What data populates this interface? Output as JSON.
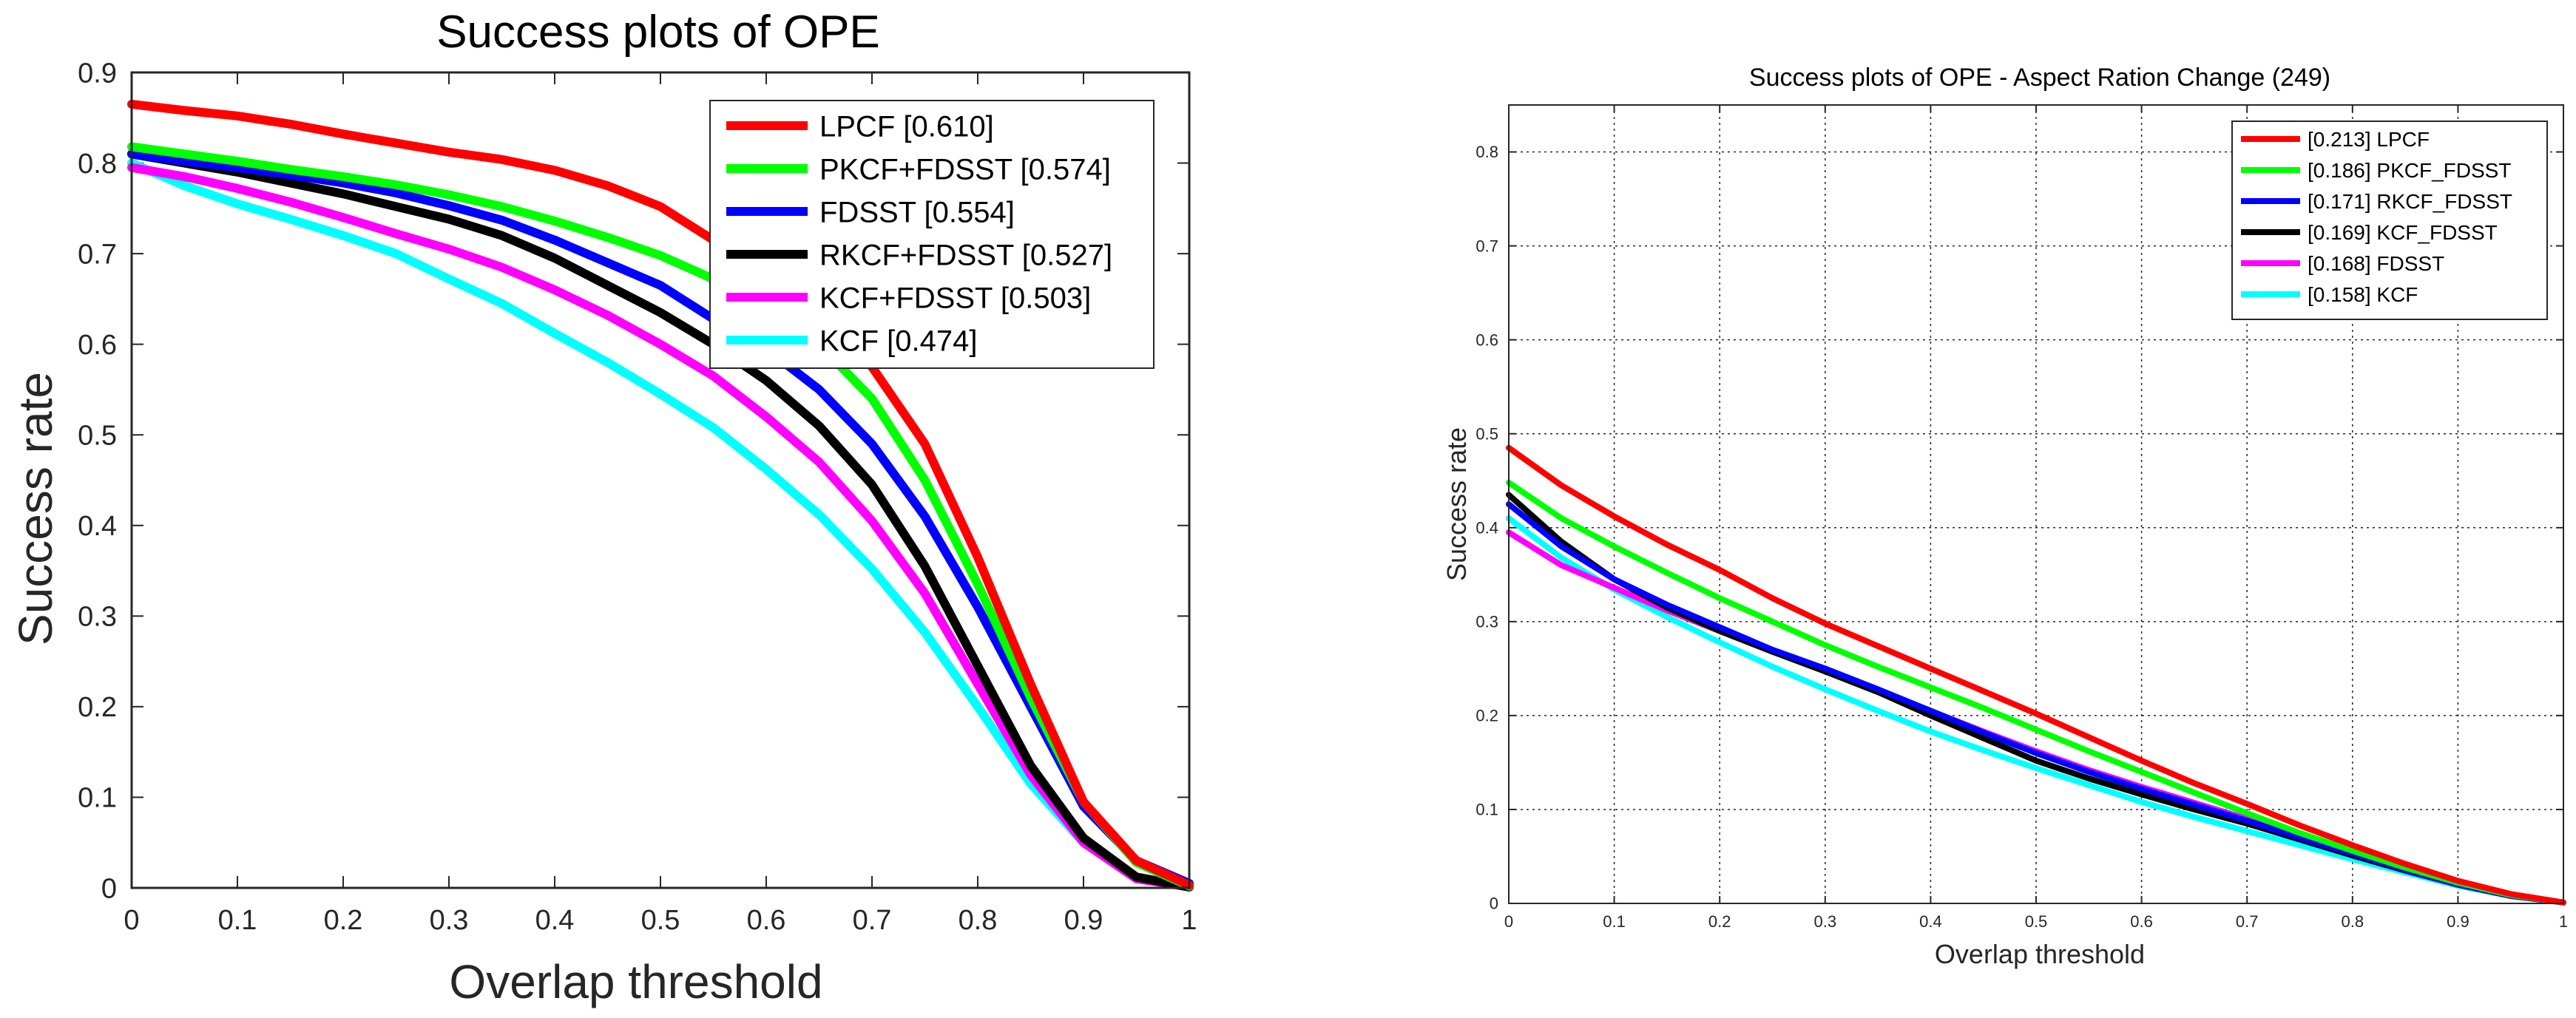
{
  "chart_data": [
    {
      "type": "line",
      "title": "Success plots of OPE",
      "xlabel": "Overlap threshold",
      "ylabel": "Success rate",
      "xlim": [
        0,
        1
      ],
      "ylim": [
        0,
        0.9
      ],
      "xticks": [
        "0",
        "0.1",
        "0.2",
        "0.3",
        "0.4",
        "0.5",
        "0.6",
        "0.7",
        "0.8",
        "0.9",
        "1"
      ],
      "yticks": [
        "0",
        "0.1",
        "0.2",
        "0.3",
        "0.4",
        "0.5",
        "0.6",
        "0.7",
        "0.8",
        "0.9"
      ],
      "grid": false,
      "legend_position": "top-right",
      "x": [
        0,
        0.05,
        0.1,
        0.15,
        0.2,
        0.25,
        0.3,
        0.35,
        0.4,
        0.45,
        0.5,
        0.55,
        0.6,
        0.65,
        0.7,
        0.75,
        0.8,
        0.85,
        0.9,
        0.95,
        1
      ],
      "series": [
        {
          "name": "LPCF [0.610]",
          "color": "#ff0000",
          "values": [
            0.865,
            0.858,
            0.852,
            0.843,
            0.832,
            0.822,
            0.812,
            0.804,
            0.792,
            0.775,
            0.752,
            0.715,
            0.67,
            0.625,
            0.575,
            0.49,
            0.365,
            0.225,
            0.095,
            0.03,
            0.003
          ]
        },
        {
          "name": "PKCF+FDSST [0.574]",
          "color": "#00ff00",
          "values": [
            0.818,
            0.81,
            0.802,
            0.793,
            0.785,
            0.776,
            0.765,
            0.752,
            0.736,
            0.718,
            0.698,
            0.672,
            0.64,
            0.6,
            0.54,
            0.45,
            0.335,
            0.21,
            0.095,
            0.028,
            0.002
          ]
        },
        {
          "name": "FDSST [0.554]",
          "color": "#0000ff",
          "values": [
            0.81,
            0.802,
            0.795,
            0.787,
            0.778,
            0.767,
            0.753,
            0.737,
            0.715,
            0.69,
            0.665,
            0.628,
            0.595,
            0.55,
            0.49,
            0.41,
            0.31,
            0.2,
            0.09,
            0.03,
            0.005
          ]
        },
        {
          "name": "RKCF+FDSST [0.527]",
          "color": "#000000",
          "values": [
            0.81,
            0.8,
            0.79,
            0.778,
            0.766,
            0.752,
            0.738,
            0.72,
            0.695,
            0.665,
            0.635,
            0.6,
            0.56,
            0.51,
            0.445,
            0.355,
            0.245,
            0.135,
            0.055,
            0.012,
            0.001
          ]
        },
        {
          "name": "KCF+FDSST [0.503]",
          "color": "#ff00ff",
          "values": [
            0.795,
            0.785,
            0.772,
            0.757,
            0.74,
            0.722,
            0.705,
            0.685,
            0.66,
            0.632,
            0.6,
            0.565,
            0.52,
            0.47,
            0.405,
            0.325,
            0.225,
            0.125,
            0.05,
            0.01,
            0.001
          ]
        },
        {
          "name": "KCF [0.474]",
          "color": "#00ffff",
          "values": [
            0.8,
            0.775,
            0.755,
            0.738,
            0.72,
            0.7,
            0.672,
            0.645,
            0.612,
            0.58,
            0.545,
            0.508,
            0.462,
            0.412,
            0.352,
            0.282,
            0.2,
            0.115,
            0.05,
            0.012,
            0.001
          ]
        }
      ]
    },
    {
      "type": "line",
      "title": "Success plots of OPE - Aspect Ration Change (249)",
      "xlabel": "Overlap threshold",
      "ylabel": "Success rate",
      "xlim": [
        0,
        1
      ],
      "ylim": [
        0,
        0.85
      ],
      "xticks": [
        "0",
        "0.1",
        "0.2",
        "0.3",
        "0.4",
        "0.5",
        "0.6",
        "0.7",
        "0.8",
        "0.9",
        "1"
      ],
      "yticks": [
        "0",
        "0.1",
        "0.2",
        "0.3",
        "0.4",
        "0.5",
        "0.6",
        "0.7",
        "0.8"
      ],
      "grid": true,
      "legend_position": "top-right",
      "x": [
        0,
        0.05,
        0.1,
        0.15,
        0.2,
        0.25,
        0.3,
        0.35,
        0.4,
        0.45,
        0.5,
        0.55,
        0.6,
        0.65,
        0.7,
        0.75,
        0.8,
        0.85,
        0.9,
        0.95,
        1
      ],
      "series": [
        {
          "name": "[0.213] LPCF",
          "color": "#ff0000",
          "values": [
            0.485,
            0.445,
            0.412,
            0.382,
            0.355,
            0.325,
            0.298,
            0.274,
            0.25,
            0.226,
            0.202,
            0.177,
            0.152,
            0.128,
            0.106,
            0.083,
            0.062,
            0.042,
            0.024,
            0.01,
            0.001
          ]
        },
        {
          "name": "[0.186] PKCF_FDSST",
          "color": "#00ff00",
          "values": [
            0.448,
            0.41,
            0.38,
            0.352,
            0.325,
            0.3,
            0.275,
            0.252,
            0.23,
            0.208,
            0.185,
            0.162,
            0.14,
            0.118,
            0.096,
            0.075,
            0.056,
            0.038,
            0.022,
            0.009,
            0.001
          ]
        },
        {
          "name": "[0.171] RKCF_FDSST",
          "color": "#0000ff",
          "values": [
            0.425,
            0.38,
            0.345,
            0.318,
            0.294,
            0.27,
            0.25,
            0.228,
            0.205,
            0.182,
            0.16,
            0.14,
            0.122,
            0.105,
            0.088,
            0.07,
            0.053,
            0.036,
            0.02,
            0.008,
            0.001
          ]
        },
        {
          "name": "[0.169] KCF_FDSST",
          "color": "#000000",
          "values": [
            0.435,
            0.385,
            0.345,
            0.315,
            0.29,
            0.268,
            0.247,
            0.225,
            0.2,
            0.176,
            0.152,
            0.133,
            0.116,
            0.1,
            0.085,
            0.068,
            0.051,
            0.035,
            0.02,
            0.008,
            0.001
          ]
        },
        {
          "name": "[0.168] FDSST",
          "color": "#ff00ff",
          "values": [
            0.395,
            0.36,
            0.336,
            0.312,
            0.29,
            0.268,
            0.248,
            0.226,
            0.205,
            0.183,
            0.162,
            0.142,
            0.124,
            0.107,
            0.09,
            0.072,
            0.054,
            0.037,
            0.021,
            0.008,
            0.001
          ]
        },
        {
          "name": "[0.158] KCF",
          "color": "#00ffff",
          "values": [
            0.41,
            0.368,
            0.334,
            0.305,
            0.278,
            0.252,
            0.228,
            0.205,
            0.183,
            0.163,
            0.144,
            0.126,
            0.108,
            0.092,
            0.077,
            0.062,
            0.047,
            0.033,
            0.019,
            0.008,
            0.001
          ]
        }
      ]
    }
  ]
}
